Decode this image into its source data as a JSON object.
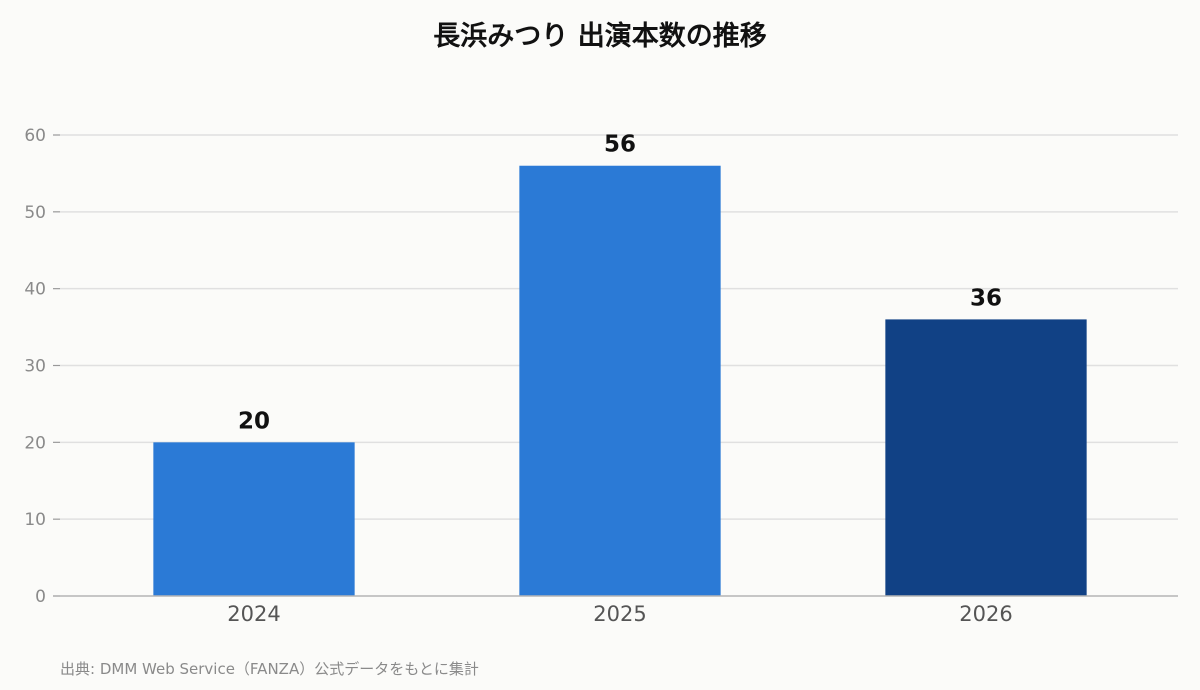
{
  "chart_data": {
    "type": "bar",
    "title": "長浜みつり 出演本数の推移",
    "categories": [
      "2024",
      "2025",
      "2026"
    ],
    "values": [
      20,
      56,
      36
    ],
    "bar_colors": [
      "#2b7ad6",
      "#2b7ad6",
      "#114185"
    ],
    "xlabel": "",
    "ylabel": "",
    "ylim": [
      0,
      60
    ],
    "yticks": [
      0,
      10,
      20,
      30,
      40,
      50,
      60
    ],
    "grid": true,
    "data_labels": true
  },
  "source": "出典: DMM Web Service（FANZA）公式データをもとに集計"
}
